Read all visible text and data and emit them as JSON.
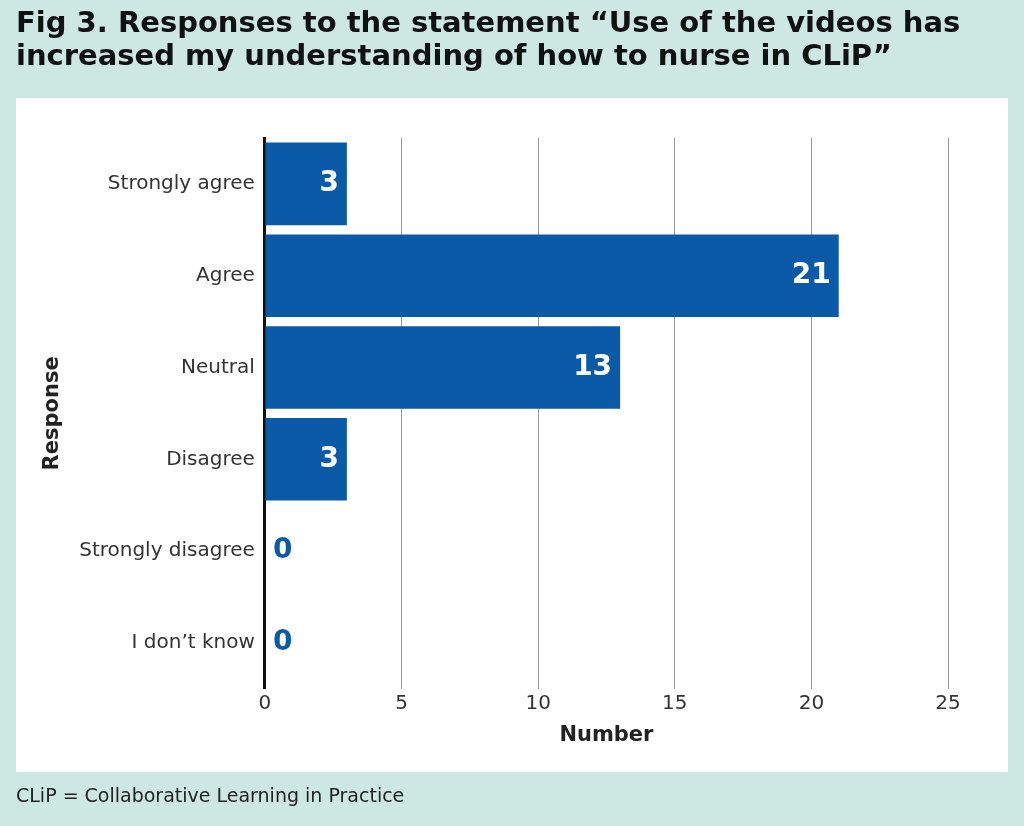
{
  "chart_data": {
    "type": "bar",
    "orientation": "horizontal",
    "title": "Fig 3. Responses to the statement “Use of the videos has increased my understanding of how to nurse in CLiP”",
    "categories": [
      "Strongly agree",
      "Agree",
      "Neutral",
      "Disagree",
      "Strongly disagree",
      "I don’t know"
    ],
    "values": [
      3,
      21,
      13,
      3,
      0,
      0
    ],
    "color": "#0a5aa8",
    "xlim": [
      0,
      25
    ],
    "xticks": [
      0,
      5,
      10,
      15,
      20,
      25
    ],
    "grid": "x",
    "data_labels": true,
    "xlabel": "Number",
    "ylabel": "Response",
    "annotations": [
      "CLiP = Collaborative Learning in Practice"
    ]
  }
}
